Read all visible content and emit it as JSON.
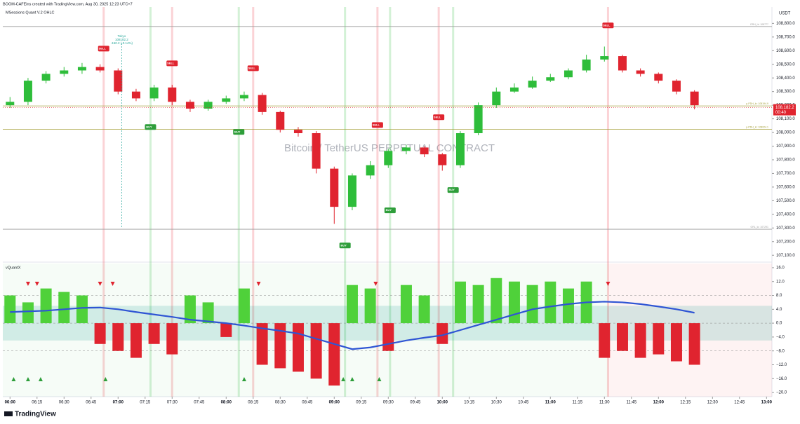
{
  "attribution": "BOOM-CAFEins created with TradingView.com, Aug 30, 2025 12:23 UTC+7",
  "legend": "MSessions Quant V.2 OHLC",
  "footer": "TradingView",
  "chart_data": [
    {
      "type": "candlestick",
      "title": "Bitcoin / TetherUS PERPETUAL CONTRACT",
      "currency": "USDT",
      "x": [
        "06:00",
        "06:10",
        "06:20",
        "06:30",
        "06:40",
        "06:50",
        "07:00",
        "07:10",
        "07:20",
        "07:30",
        "07:40",
        "07:50",
        "08:00",
        "08:10",
        "08:20",
        "08:30",
        "08:40",
        "08:50",
        "09:00",
        "09:10",
        "09:20",
        "09:30",
        "09:40",
        "09:50",
        "10:00",
        "10:10",
        "10:20",
        "10:30",
        "10:40",
        "10:50",
        "11:00",
        "11:10",
        "11:20",
        "11:30",
        "11:40",
        "11:50",
        "12:00",
        "12:10",
        "12:20"
      ],
      "open": [
        108200,
        108225,
        108380,
        108430,
        108455,
        108480,
        108455,
        108300,
        108250,
        108330,
        108225,
        108175,
        108225,
        108250,
        108275,
        108150,
        108020,
        107995,
        107735,
        107455,
        107685,
        107760,
        107865,
        107890,
        107840,
        107760,
        107995,
        108200,
        108300,
        108330,
        108380,
        108405,
        108455,
        108535,
        108560,
        108455,
        108430,
        108380,
        108300
      ],
      "high": [
        108260,
        108400,
        108450,
        108480,
        108510,
        108500,
        108470,
        108320,
        108350,
        108350,
        108240,
        108240,
        108270,
        108300,
        108290,
        108160,
        108040,
        108010,
        107750,
        107700,
        107790,
        107880,
        107910,
        107900,
        107850,
        108010,
        108220,
        108330,
        108360,
        108410,
        108430,
        108470,
        108570,
        108630,
        108570,
        108470,
        108440,
        108390,
        108310
      ],
      "low": [
        108180,
        108200,
        108360,
        108410,
        108430,
        108440,
        108280,
        108230,
        108230,
        108200,
        108150,
        108160,
        108210,
        108230,
        108130,
        108000,
        107970,
        107700,
        107330,
        107430,
        107660,
        107740,
        107840,
        107820,
        107720,
        107740,
        107980,
        108180,
        108290,
        108320,
        108370,
        108390,
        108440,
        108520,
        108440,
        108410,
        108360,
        108280,
        108170
      ],
      "close": [
        108225,
        108380,
        108430,
        108455,
        108480,
        108455,
        108300,
        108250,
        108330,
        108225,
        108175,
        108225,
        108250,
        108275,
        108150,
        108020,
        107995,
        107735,
        107455,
        107685,
        107760,
        107865,
        107890,
        107840,
        107760,
        107995,
        108200,
        108300,
        108330,
        108380,
        108405,
        108455,
        108535,
        108560,
        108455,
        108430,
        108380,
        108300,
        108200
      ],
      "up_color": "#2ebd3a",
      "down_color": "#e0242f",
      "xlim": [
        "05:56",
        "13:03"
      ],
      "xticks": [
        "06:00",
        "06:15",
        "06:30",
        "06:45",
        "07:00",
        "07:15",
        "07:30",
        "07:45",
        "08:00",
        "08:15",
        "08:30",
        "08:45",
        "09:00",
        "09:15",
        "09:30",
        "09:45",
        "10:00",
        "10:15",
        "10:30",
        "10:45",
        "11:00",
        "11:15",
        "11:30",
        "11:45",
        "12:00",
        "12:15",
        "12:30",
        "12:45",
        "13:00"
      ],
      "ylim": [
        107060,
        108920
      ],
      "yticks": [
        {
          "value": 107100,
          "label": "107,100.0"
        },
        {
          "value": 107200,
          "label": "107,200.0"
        },
        {
          "value": 107300,
          "label": "107,300.0"
        },
        {
          "value": 107400,
          "label": "107,400.0"
        },
        {
          "value": 107500,
          "label": "107,500.0"
        },
        {
          "value": 107600,
          "label": "107,600.0"
        },
        {
          "value": 107700,
          "label": "107,700.0"
        },
        {
          "value": 107800,
          "label": "107,800.0"
        },
        {
          "value": 107900,
          "label": "107,900.0"
        },
        {
          "value": 108000,
          "label": "108,000.0"
        },
        {
          "value": 108100,
          "label": "108,100.0"
        },
        {
          "value": 108200,
          "label": "108,200.0"
        },
        {
          "value": 108300,
          "label": "108,300.0"
        },
        {
          "value": 108400,
          "label": "108,400.0"
        },
        {
          "value": 108500,
          "label": "108,500.0"
        },
        {
          "value": 108600,
          "label": "108,600.0"
        },
        {
          "value": 108700,
          "label": "108,700.0"
        },
        {
          "value": 108800,
          "label": "108,800.0"
        }
      ],
      "levels": [
        {
          "label": "ORH_hi: 108777",
          "value": 108777,
          "color": "#9e9e9e"
        },
        {
          "label": "p-PDH_lo: 108194.9",
          "value": 108194.9,
          "color": "#a5a03c"
        },
        {
          "label": "p-PDH_lo: 108024.1",
          "value": 108024.1,
          "color": "#a5a03c"
        },
        {
          "label": "ORL_lo: 107291",
          "value": 107291,
          "color": "#9e9e9e"
        }
      ],
      "signals": [
        {
          "label": "SELL",
          "x": "06:52",
          "price": 108615
        },
        {
          "label": "SELL",
          "x": "07:30",
          "price": 108507
        },
        {
          "label": "SELL",
          "x": "08:15",
          "price": 108471
        },
        {
          "label": "BUY",
          "x": "07:18",
          "price": 108040
        },
        {
          "label": "BUY",
          "x": "08:07",
          "price": 108004
        },
        {
          "label": "BUY",
          "x": "09:06",
          "price": 107172
        },
        {
          "label": "SELL",
          "x": "09:24",
          "price": 108055
        },
        {
          "label": "BUY",
          "x": "09:31",
          "price": 107429
        },
        {
          "label": "SELL",
          "x": "09:58",
          "price": 108112
        },
        {
          "label": "BUY",
          "x": "10:06",
          "price": 107578
        },
        {
          "label": "SELL",
          "x": "11:32",
          "price": 108785
        }
      ],
      "last_price": {
        "value": 108182.2,
        "label": "108,182.2"
      },
      "countdown": "00:40",
      "tooltip": {
        "x": "07:02",
        "title": "Tokyo",
        "price": "108182.2",
        "change": "-150.2 (-0.14%)"
      }
    },
    {
      "type": "histogram",
      "title": "vQuantX",
      "x": [
        "06:00",
        "06:10",
        "06:20",
        "06:30",
        "06:40",
        "06:50",
        "07:00",
        "07:10",
        "07:20",
        "07:30",
        "07:40",
        "07:50",
        "08:00",
        "08:10",
        "08:20",
        "08:30",
        "08:40",
        "08:50",
        "09:00",
        "09:10",
        "09:20",
        "09:30",
        "09:40",
        "09:50",
        "10:00",
        "10:10",
        "10:20",
        "10:30",
        "10:40",
        "10:50",
        "11:00",
        "11:10",
        "11:20",
        "11:30",
        "11:40",
        "11:50",
        "12:00",
        "12:10",
        "12:20"
      ],
      "values": [
        8,
        6,
        10,
        9,
        8,
        -6,
        -8,
        -10,
        -6,
        -9,
        8,
        6,
        -4,
        10,
        -12,
        -13,
        -14,
        -16,
        -18,
        11,
        10,
        -8,
        11,
        8,
        -6,
        12,
        11,
        13,
        12,
        11,
        12,
        10,
        12,
        -10,
        -8,
        -10,
        -9,
        -11,
        -12
      ],
      "up_color": "#4fd13a",
      "down_color": "#e0242f",
      "line": {
        "color": "#2f55d4",
        "values": [
          3.2,
          3.4,
          3.6,
          4.0,
          4.4,
          4.5,
          4.0,
          3.2,
          2.5,
          1.8,
          1.0,
          0.5,
          0,
          -0.7,
          -1.5,
          -2.2,
          -3,
          -4.5,
          -6,
          -7.5,
          -7,
          -6,
          -5,
          -4.2,
          -3.5,
          -2,
          -0.5,
          1,
          2.5,
          4,
          4.8,
          5.5,
          6,
          6.2,
          6,
          5.5,
          4.8,
          4,
          3
        ]
      },
      "band": [
        5,
        -5
      ],
      "guides": [
        8,
        0,
        -8
      ],
      "down_markers": [
        "06:10",
        "06:15",
        "06:50",
        "06:57",
        "08:18",
        "09:23",
        "11:32"
      ],
      "up_markers": [
        "06:02",
        "06:10",
        "06:17",
        "06:53",
        "08:10",
        "09:05",
        "09:10",
        "09:25"
      ],
      "xlim": [
        "05:56",
        "13:03"
      ],
      "ylim": [
        -21.2,
        17.2
      ],
      "yticks": [
        {
          "value": 16,
          "label": "16.0"
        },
        {
          "value": 12,
          "label": "12.0"
        },
        {
          "value": 8,
          "label": "8.0"
        },
        {
          "value": 4,
          "label": "4.0"
        },
        {
          "value": 0,
          "label": "0.0"
        },
        {
          "value": -4,
          "label": "−4.0"
        },
        {
          "value": -8,
          "label": "−8.0"
        },
        {
          "value": -12,
          "label": "−12.0"
        },
        {
          "value": -16,
          "label": "−16.0"
        },
        {
          "value": -20,
          "label": "−20.0"
        }
      ]
    }
  ]
}
